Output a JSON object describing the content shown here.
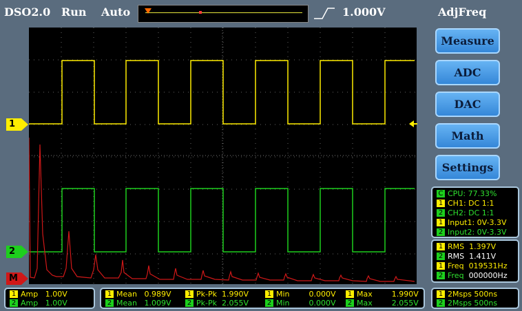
{
  "topbar": {
    "app_title": "DSO2.0",
    "run_state": "Run",
    "trigger_mode": "Auto",
    "trigger_level": "1.000V",
    "function": "AdjFreq"
  },
  "channels": {
    "ch1_marker": "1",
    "ch2_marker": "2",
    "math_marker": "M"
  },
  "menu": {
    "items": [
      "Measure",
      "ADC",
      "DAC",
      "Math",
      "Settings"
    ]
  },
  "status": {
    "cpu": {
      "badge": "C",
      "text": "CPU: 77.33%"
    },
    "ch1": {
      "badge": "1",
      "text": "CH1: DC 1:1"
    },
    "ch2": {
      "badge": "2",
      "text": "CH2: DC 1:1"
    },
    "input1": {
      "badge": "1",
      "text": "Input1: 0V-3.3V"
    },
    "input2": {
      "badge": "2",
      "text": "Input2: 0V-3.3V"
    }
  },
  "measurements": {
    "rms1": {
      "label": "RMS",
      "value": "1.397V"
    },
    "rms2": {
      "label": "RMS",
      "value": "1.411V"
    },
    "freq1": {
      "label": "Freq",
      "value": "019531Hz"
    },
    "freq2": {
      "label": "Freq",
      "value": "000000Hz"
    }
  },
  "bottom": {
    "amp1": {
      "label": "Amp",
      "value": "1.00V"
    },
    "amp2": {
      "label": "Amp",
      "value": "1.00V"
    },
    "ch1": {
      "mean_label": "Mean",
      "mean": "0.989V",
      "pkpk_label": "Pk-Pk",
      "pkpk": "1.990V",
      "min_label": "Min",
      "min": "0.000V",
      "max_label": "Max",
      "max": "1.990V"
    },
    "ch2": {
      "mean_label": "Mean",
      "mean": "1.009V",
      "pkpk_label": "Pk-Pk",
      "pkpk": "2.055V",
      "min_label": "Min",
      "min": "0.000V",
      "max_label": "Max",
      "max": "2.055V"
    },
    "sample1": "2Msps 500ns",
    "sample2": "2Msps 500ns"
  },
  "colors": {
    "ch1": "#ffee00",
    "ch2": "#1dcf1d",
    "math": "#d01818",
    "accent": "#3b8fe0"
  },
  "icons": {
    "edge": "rising-edge-icon",
    "trigger_pos": "trigger-position-icon",
    "trigger_level": "trigger-level-arrow-icon"
  }
}
